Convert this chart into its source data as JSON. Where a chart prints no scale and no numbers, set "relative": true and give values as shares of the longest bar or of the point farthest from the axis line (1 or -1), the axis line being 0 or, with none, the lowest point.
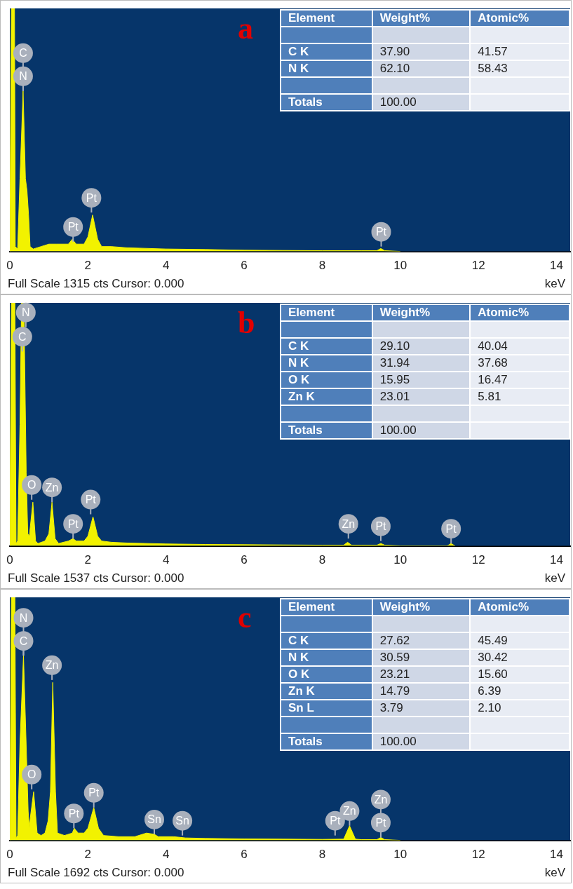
{
  "chart_data": [
    {
      "type": "area",
      "title": "a",
      "xlabel": "keV",
      "relative": true,
      "xlim": [
        0,
        14.35
      ],
      "xticks": [
        0,
        2,
        4,
        6,
        8,
        10,
        12,
        14
      ],
      "x": [
        0,
        0.04,
        0.06,
        0.12,
        0.14,
        0.2,
        0.26,
        0.34,
        0.4,
        0.44,
        0.48,
        0.52,
        0.6,
        0.8,
        1.0,
        1.2,
        1.5,
        1.6,
        1.7,
        1.9,
        2.0,
        2.12,
        2.25,
        2.35,
        2.6,
        3,
        4,
        5,
        6,
        7,
        8,
        9,
        9.4,
        9.5,
        9.6,
        10
      ],
      "series": [
        {
          "color": "#f2f200",
          "values": [
            0,
            1,
            1,
            1,
            0.02,
            0.01,
            0.3,
            0.66,
            0.3,
            0.25,
            0.15,
            0.02,
            0.01,
            0.02,
            0.03,
            0.03,
            0.03,
            0.05,
            0.03,
            0.03,
            0.06,
            0.15,
            0.05,
            0.02,
            0.02,
            0.015,
            0.01,
            0.008,
            0.005,
            0.004,
            0.003,
            0.003,
            0.003,
            0.012,
            0.003,
            0
          ]
        }
      ],
      "annotations": [
        "Element",
        "Weight%",
        "Atomic%",
        "C K",
        "37.90",
        "41.57",
        "N K",
        "62.10",
        "58.43",
        "Totals",
        "100.00",
        "Full Scale 1315 cts Cursor: 0.000",
        {
          "text": "C",
          "x": 0.34,
          "y": 0.66
        },
        {
          "text": "N",
          "x": 0.34,
          "y": 0.66
        },
        {
          "text": "Pt",
          "x": 1.62,
          "y": 0.04
        },
        {
          "text": "Pt",
          "x": 2.09,
          "y": 0.16
        },
        {
          "text": "Pt",
          "x": 9.51,
          "y": 0.02
        }
      ]
    },
    {
      "type": "area",
      "title": "b",
      "xlabel": "keV",
      "relative": true,
      "xlim": [
        0,
        14.35
      ],
      "xticks": [
        0,
        2,
        4,
        6,
        8,
        10,
        12,
        14
      ],
      "x": [
        0,
        0.04,
        0.06,
        0.13,
        0.16,
        0.2,
        0.26,
        0.3,
        0.36,
        0.42,
        0.46,
        0.5,
        0.59,
        0.66,
        0.72,
        0.9,
        1.0,
        1.08,
        1.16,
        1.25,
        1.5,
        1.62,
        1.7,
        1.9,
        2.0,
        2.13,
        2.25,
        2.35,
        2.6,
        3,
        4,
        5,
        6,
        7,
        8,
        8.55,
        8.65,
        8.75,
        9,
        9.4,
        9.5,
        9.6,
        10,
        11.2,
        11.3,
        11.4
      ],
      "series": [
        {
          "color": "#f2f200",
          "values": [
            0,
            1,
            1,
            1,
            0.01,
            0.02,
            0.5,
            1,
            1,
            0.3,
            0.05,
            0.04,
            0.18,
            0.02,
            0.01,
            0.02,
            0.05,
            0.18,
            0.03,
            0.01,
            0.02,
            0.03,
            0.02,
            0.02,
            0.04,
            0.12,
            0.04,
            0.02,
            0.015,
            0.012,
            0.008,
            0.006,
            0.005,
            0.004,
            0.003,
            0.003,
            0.015,
            0.003,
            0.003,
            0.003,
            0.01,
            0.003,
            0,
            0,
            0.01,
            0
          ]
        }
      ],
      "annotations": [
        "Element",
        "Weight%",
        "Atomic%",
        "C K",
        "29.10",
        "40.04",
        "N K",
        "31.94",
        "37.68",
        "O K",
        "15.95",
        "16.47",
        "Zn K",
        "23.01",
        "5.81",
        "Totals",
        "100.00",
        "Full Scale 1537 cts Cursor: 0.000",
        {
          "text": "N",
          "x": 0.41,
          "y": 0.9
        },
        {
          "text": "C",
          "x": 0.32,
          "y": 0.8
        },
        {
          "text": "O",
          "x": 0.56,
          "y": 0.19
        },
        {
          "text": "Zn",
          "x": 1.08,
          "y": 0.18
        },
        {
          "text": "Pt",
          "x": 1.62,
          "y": 0.03
        },
        {
          "text": "Pt",
          "x": 2.07,
          "y": 0.13
        },
        {
          "text": "Zn",
          "x": 8.67,
          "y": 0.03
        },
        {
          "text": "Pt",
          "x": 9.5,
          "y": 0.02
        },
        {
          "text": "Pt",
          "x": 11.3,
          "y": 0.01
        }
      ]
    },
    {
      "type": "area",
      "title": "c",
      "xlabel": "keV",
      "relative": true,
      "xlim": [
        0,
        14.35
      ],
      "xticks": [
        0,
        2,
        4,
        6,
        8,
        10,
        12,
        14
      ],
      "x": [
        0,
        0.04,
        0.06,
        0.13,
        0.16,
        0.2,
        0.26,
        0.35,
        0.47,
        0.5,
        0.53,
        0.61,
        0.7,
        0.8,
        0.9,
        0.98,
        1.04,
        1.1,
        1.17,
        1.22,
        1.4,
        1.6,
        1.65,
        1.75,
        1.9,
        2.0,
        2.15,
        2.27,
        2.4,
        2.8,
        3.2,
        3.5,
        3.7,
        3.8,
        4.2,
        4.5,
        5,
        6,
        7,
        8,
        8.55,
        8.7,
        8.85,
        9,
        9.4,
        9.5,
        9.6,
        10
      ],
      "series": [
        {
          "color": "#f2f200",
          "values": [
            0,
            1,
            1,
            1,
            0.01,
            0.02,
            0.4,
            0.76,
            0.12,
            0.05,
            0.1,
            0.2,
            0.03,
            0.02,
            0.03,
            0.08,
            0.2,
            0.65,
            0.2,
            0.03,
            0.02,
            0.03,
            0.05,
            0.03,
            0.03,
            0.05,
            0.135,
            0.05,
            0.02,
            0.015,
            0.015,
            0.03,
            0.025,
            0.015,
            0.015,
            0.01,
            0.008,
            0.006,
            0.005,
            0.004,
            0.005,
            0.06,
            0.005,
            0.003,
            0.003,
            0.012,
            0.003,
            0
          ]
        }
      ],
      "annotations": [
        "Element",
        "Weight%",
        "Atomic%",
        "C K",
        "27.62",
        "45.49",
        "N K",
        "30.59",
        "30.42",
        "O K",
        "23.21",
        "15.60",
        "Zn K",
        "14.79",
        "6.39",
        "Sn L",
        "3.79",
        "2.10",
        "Totals",
        "100.00",
        "Full Scale 1692 cts Cursor: 0.000",
        {
          "text": "N",
          "x": 0.35,
          "y": 0.76
        },
        {
          "text": "C",
          "x": 0.35,
          "y": 0.76
        },
        {
          "text": "Zn",
          "x": 1.08,
          "y": 0.66
        },
        {
          "text": "O",
          "x": 0.56,
          "y": 0.21
        },
        {
          "text": "Pt",
          "x": 1.64,
          "y": 0.05
        },
        {
          "text": "Pt",
          "x": 2.15,
          "y": 0.135
        },
        {
          "text": "Sn",
          "x": 3.7,
          "y": 0.025
        },
        {
          "text": "Sn",
          "x": 4.42,
          "y": 0.02
        },
        {
          "text": "Pt",
          "x": 8.33,
          "y": 0.02
        },
        {
          "text": "Zn",
          "x": 8.7,
          "y": 0.06
        },
        {
          "text": "Zn",
          "x": 9.5,
          "y": 0.012
        },
        {
          "text": "Pt",
          "x": 9.5,
          "y": 0.012
        }
      ]
    }
  ]
}
